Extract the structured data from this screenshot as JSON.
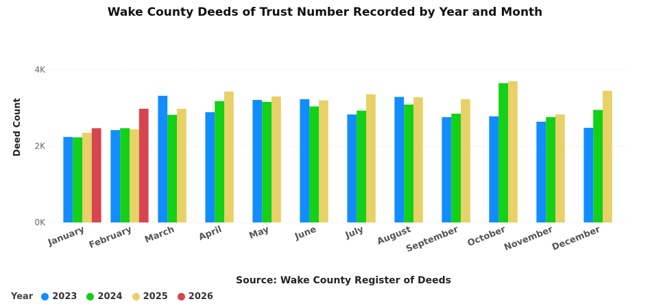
{
  "chart_data": {
    "type": "bar",
    "title": "Wake County Deeds of Trust Number Recorded by Year and Month",
    "xlabel": "Source: Wake County Register of Deeds",
    "ylabel": "Deed Count",
    "ylim": [
      0,
      4000
    ],
    "yticks": [
      0,
      2000,
      4000
    ],
    "ytick_labels": [
      "0K",
      "2K",
      "4K"
    ],
    "grid": true,
    "legend_title": "Year",
    "legend_position": "bottom-left",
    "categories": [
      "January",
      "February",
      "March",
      "April",
      "May",
      "June",
      "July",
      "August",
      "September",
      "October",
      "November",
      "December"
    ],
    "series": [
      {
        "name": "2023",
        "color": "#118DFF",
        "values": [
          2240,
          2420,
          3320,
          2890,
          3210,
          3230,
          2830,
          3290,
          2760,
          2780,
          2640,
          2480
        ]
      },
      {
        "name": "2024",
        "color": "#12D118",
        "values": [
          2230,
          2470,
          2820,
          3180,
          3160,
          3040,
          2930,
          3090,
          2850,
          3650,
          2760,
          2950
        ]
      },
      {
        "name": "2025",
        "color": "#E8D166",
        "values": [
          2350,
          2440,
          2980,
          3430,
          3300,
          3200,
          3360,
          3280,
          3230,
          3700,
          2830,
          3450
        ]
      },
      {
        "name": "2026",
        "color": "#D64550",
        "values": [
          2470,
          2980,
          null,
          null,
          null,
          null,
          null,
          null,
          null,
          null,
          null,
          null
        ]
      }
    ]
  }
}
